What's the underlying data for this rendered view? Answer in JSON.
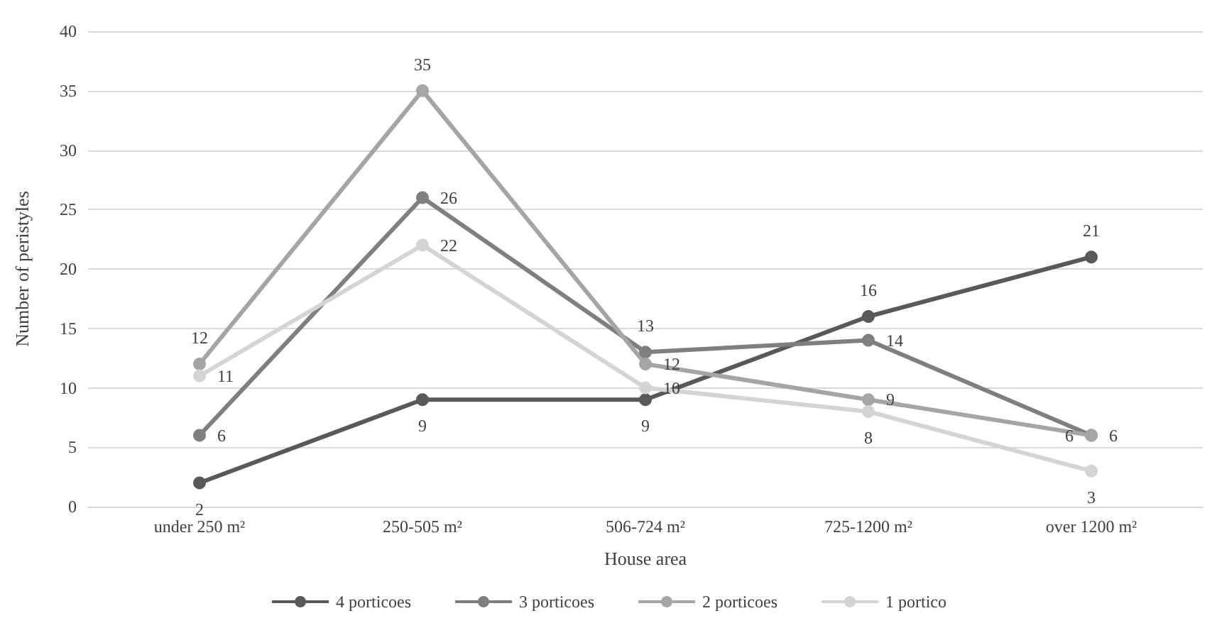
{
  "chart_data": {
    "type": "line",
    "xlabel": "House area",
    "ylabel": "Number of peristyles",
    "categories": [
      "under 250 m²",
      "250-505 m²",
      "506-724 m²",
      "725-1200 m²",
      "over 1200 m²"
    ],
    "series": [
      {
        "name": "4 porticoes",
        "color": "#595959",
        "values": [
          2,
          9,
          9,
          16,
          21
        ]
      },
      {
        "name": "3 porticoes",
        "color": "#7f7f7f",
        "values": [
          6,
          26,
          13,
          14,
          6
        ]
      },
      {
        "name": "2 porticoes",
        "color": "#a5a5a5",
        "values": [
          12,
          35,
          12,
          9,
          6
        ]
      },
      {
        "name": "1 portico",
        "color": "#d4d4d4",
        "values": [
          11,
          22,
          10,
          8,
          3
        ]
      }
    ],
    "ylim": [
      0,
      40
    ],
    "yticks": [
      0,
      5,
      10,
      15,
      20,
      25,
      30,
      35,
      40
    ],
    "grid": "y",
    "legend": "bottom",
    "marker": "circle",
    "line_style": "solid",
    "data_labels": true
  }
}
